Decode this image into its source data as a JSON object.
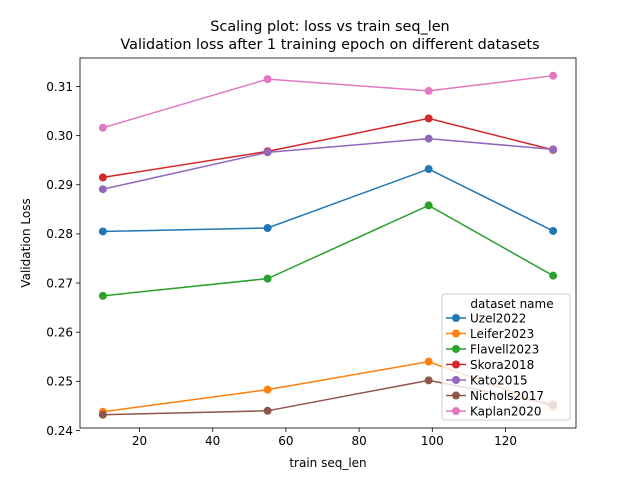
{
  "chart_data": {
    "type": "line",
    "title_line1": "Scaling plot: loss vs train seq_len",
    "title_line2": "Validation loss after 1 training epoch on different datasets",
    "xlabel": "train seq_len",
    "ylabel": "Validation Loss",
    "xlim": [
      3.75,
      139.25
    ],
    "ylim": [
      0.2405,
      0.3158
    ],
    "x_ticks": [
      20,
      40,
      60,
      80,
      100,
      120
    ],
    "y_ticks": [
      0.24,
      0.25,
      0.26,
      0.27,
      0.28,
      0.29,
      0.3,
      0.31
    ],
    "y_tick_labels": [
      "0.24",
      "0.25",
      "0.26",
      "0.27",
      "0.28",
      "0.29",
      "0.30",
      "0.31"
    ],
    "grid": false,
    "legend": {
      "title": "dataset name",
      "position": "lower-right"
    },
    "x": [
      10,
      55,
      99,
      133
    ],
    "series": [
      {
        "name": "Uzel2022",
        "color": "#1f77b4",
        "values": [
          0.2805,
          0.2812,
          0.2932,
          0.2806
        ]
      },
      {
        "name": "Leifer2023",
        "color": "#ff7f0e",
        "values": [
          0.2438,
          0.2483,
          0.254,
          0.2448
        ]
      },
      {
        "name": "Flavell2023",
        "color": "#2ca02c",
        "values": [
          0.2674,
          0.2709,
          0.2858,
          0.2715
        ]
      },
      {
        "name": "Skora2018",
        "color": "#d62728",
        "values": [
          0.2915,
          0.2968,
          0.3035,
          0.2971
        ]
      },
      {
        "name": "Kato2015",
        "color": "#9467bd",
        "values": [
          0.2891,
          0.2966,
          0.2994,
          0.2972
        ]
      },
      {
        "name": "Nichols2017",
        "color": "#8c564b",
        "values": [
          0.2432,
          0.244,
          0.2502,
          0.2453
        ]
      },
      {
        "name": "Kaplan2020",
        "color": "#e377c2",
        "values": [
          0.3016,
          0.3115,
          0.3091,
          0.3122
        ]
      }
    ]
  }
}
